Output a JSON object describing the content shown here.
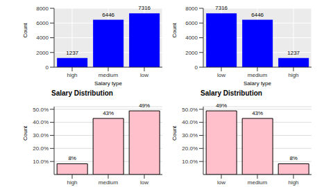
{
  "chart_data": [
    {
      "type": "bar",
      "x_label": "Salary type",
      "y_label": "Count",
      "categories": [
        "high",
        "medium",
        "low"
      ],
      "values": [
        1237,
        6446,
        7316
      ],
      "color": "#0000ff",
      "ylim": [
        0,
        8000
      ],
      "yticks": [
        0,
        2000,
        4000,
        6000,
        8000
      ],
      "data_labels": true,
      "grid": true
    },
    {
      "type": "bar",
      "x_label": "Salary type",
      "y_label": "Count",
      "categories": [
        "low",
        "medium",
        "high"
      ],
      "values": [
        7316,
        6446,
        1237
      ],
      "color": "#0000ff",
      "ylim": [
        0,
        8000
      ],
      "yticks": [
        0,
        2000,
        4000,
        6000,
        8000
      ],
      "data_labels": true,
      "grid": true
    },
    {
      "type": "bar",
      "title": "Salary Distribution",
      "y_label": "Count",
      "categories": [
        "high",
        "medium",
        "low"
      ],
      "values": [
        8.24,
        42.98,
        48.78
      ],
      "value_labels": [
        "8%",
        "43%",
        "49%"
      ],
      "color": "#ffc0cb",
      "ylim": [
        0,
        52
      ],
      "yticks": [
        {
          "value": 10,
          "label": "10.0%"
        },
        {
          "value": 20,
          "label": "20.0%"
        },
        {
          "value": 30,
          "label": "30.0%"
        },
        {
          "value": 40,
          "label": "40.0%"
        },
        {
          "value": 50,
          "label": "50.0%"
        }
      ],
      "data_labels": true,
      "grid": true
    },
    {
      "type": "bar",
      "title": "Salary Distribution",
      "y_label": "Count",
      "categories": [
        "low",
        "medium",
        "high"
      ],
      "values": [
        48.78,
        42.98,
        8.24
      ],
      "value_labels": [
        "49%",
        "43%",
        "8%"
      ],
      "color": "#ffc0cb",
      "ylim": [
        0,
        52
      ],
      "yticks": [
        {
          "value": 10,
          "label": "10.0%"
        },
        {
          "value": 20,
          "label": "20.0%"
        },
        {
          "value": 30,
          "label": "30.0%"
        },
        {
          "value": 40,
          "label": "40.0%"
        },
        {
          "value": 50,
          "label": "50.0%"
        }
      ],
      "data_labels": true,
      "grid": true
    }
  ]
}
